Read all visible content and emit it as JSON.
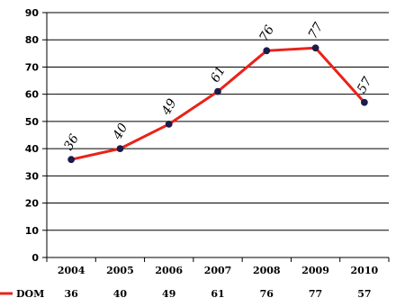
{
  "chart_data": {
    "type": "line",
    "categories": [
      "2004",
      "2005",
      "2006",
      "2007",
      "2008",
      "2009",
      "2010"
    ],
    "series": [
      {
        "name": "DOM",
        "values": [
          36,
          40,
          49,
          61,
          76,
          77,
          57
        ],
        "color": "#e8231a",
        "marker_color": "#1c1c4a"
      }
    ],
    "ylim": [
      0,
      90
    ],
    "yticks": [
      0,
      10,
      20,
      30,
      40,
      50,
      60,
      70,
      80,
      90
    ],
    "grid": true,
    "data_labels": [
      "36",
      "40",
      "49",
      "61",
      "76",
      "77",
      "57"
    ],
    "data_table": {
      "legend_label": "DOM",
      "values": [
        "36",
        "40",
        "49",
        "61",
        "76",
        "77",
        "57"
      ]
    }
  }
}
